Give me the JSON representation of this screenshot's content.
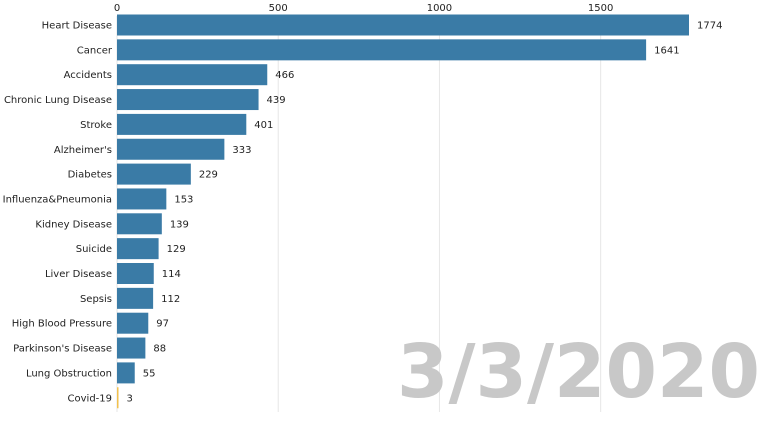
{
  "chart_data": {
    "type": "bar",
    "orientation": "horizontal",
    "categories": [
      "Heart Disease",
      "Cancer",
      "Accidents",
      "Chronic Lung Disease",
      "Stroke",
      "Alzheimer's",
      "Diabetes",
      "Influenza&Pneumonia",
      "Kidney Disease",
      "Suicide",
      "Liver Disease",
      "Sepsis",
      "High Blood Pressure",
      "Parkinson's Disease",
      "Lung Obstruction",
      "Covid-19"
    ],
    "values": [
      1774,
      1641,
      466,
      439,
      401,
      333,
      229,
      153,
      139,
      129,
      114,
      112,
      97,
      88,
      55,
      3
    ],
    "xlim": [
      0,
      1774
    ],
    "xticks": [
      0,
      500,
      1000,
      1500
    ],
    "tick_labels": [
      "0",
      "500",
      "1000",
      "1500"
    ],
    "x_axis_position": "top",
    "grid": true,
    "date_label": "3/3/2020",
    "colors": {
      "bar": "#3a7ba6",
      "highlight": "#f2c14e",
      "grid": "#e6e6e6",
      "date": "#c8c8c8"
    },
    "highlight_category": "Covid-19"
  }
}
